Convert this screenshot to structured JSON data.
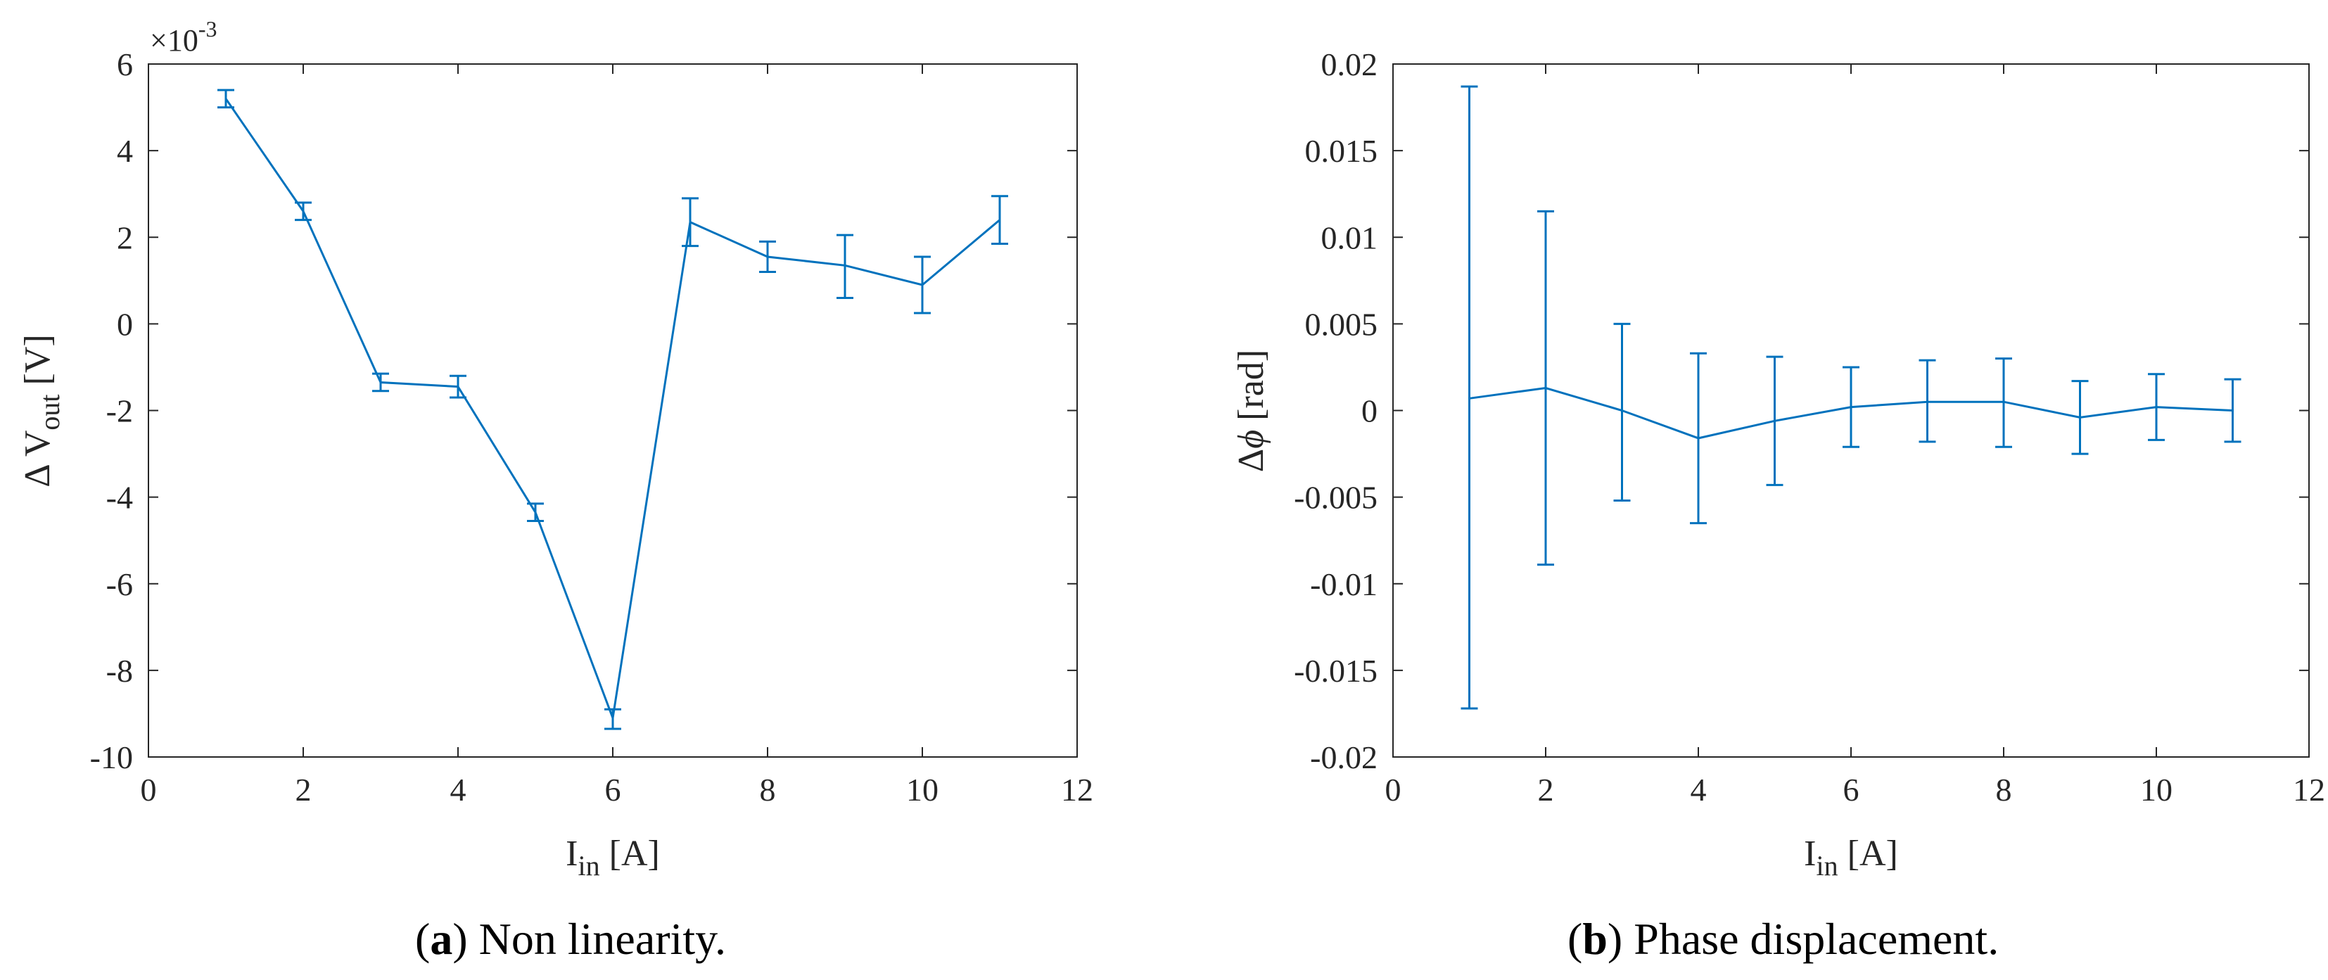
{
  "chart_data": [
    {
      "type": "line",
      "panel": "a",
      "caption_letter": "a",
      "caption_text": "Non linearity.",
      "xlabel_main": "I",
      "xlabel_sub": "in",
      "xlabel_unit": " [A]",
      "ylabel_prefix": "Δ V",
      "ylabel_sub": "out",
      "ylabel_unit": " [V]",
      "y_multiplier_base": "×10",
      "y_multiplier_exp": "-3",
      "xlim": [
        0,
        12
      ],
      "ylim": [
        -10,
        6
      ],
      "xticks": [
        0,
        2,
        4,
        6,
        8,
        10,
        12
      ],
      "yticks": [
        6,
        4,
        2,
        0,
        -2,
        -4,
        -6,
        -8,
        -10
      ],
      "series": [
        {
          "name": "ΔVout",
          "color": "#0072BD",
          "x": [
            1,
            2,
            3,
            4,
            5,
            6,
            7,
            8,
            9,
            10,
            11
          ],
          "y": [
            5.2,
            2.6,
            -1.35,
            -1.45,
            -4.35,
            -9.1,
            2.35,
            1.55,
            1.35,
            0.9,
            2.4
          ],
          "err_low": [
            5.0,
            2.4,
            -1.55,
            -1.7,
            -4.55,
            -9.35,
            1.8,
            1.2,
            0.6,
            0.25,
            1.85
          ],
          "err_high": [
            5.4,
            2.8,
            -1.15,
            -1.2,
            -4.15,
            -8.9,
            2.9,
            1.9,
            2.05,
            1.55,
            2.95
          ]
        }
      ]
    },
    {
      "type": "line",
      "panel": "b",
      "caption_letter": "b",
      "caption_text": "Phase displacement.",
      "xlabel_main": "I",
      "xlabel_sub": "in",
      "xlabel_unit": " [A]",
      "ylabel_prefix": "Δ",
      "ylabel_symbol": "ϕ",
      "ylabel_unit": " [rad]",
      "xlim": [
        0,
        12
      ],
      "ylim": [
        -0.02,
        0.02
      ],
      "xticks": [
        0,
        2,
        4,
        6,
        8,
        10,
        12
      ],
      "yticks": [
        0.02,
        0.015,
        0.01,
        0.005,
        0,
        -0.005,
        -0.01,
        -0.015,
        -0.02
      ],
      "ytick_labels": [
        "0.02",
        "0.015",
        "0.01",
        "0.005",
        "0",
        "-0.005",
        "-0.01",
        "-0.015",
        "-0.02"
      ],
      "series": [
        {
          "name": "Δphi",
          "color": "#0072BD",
          "x": [
            1,
            2,
            3,
            4,
            5,
            6,
            7,
            8,
            9,
            10,
            11
          ],
          "y": [
            0.0007,
            0.0013,
            0.0,
            -0.0016,
            -0.0006,
            0.0002,
            0.0005,
            0.0005,
            -0.0004,
            0.0002,
            0.0
          ],
          "err_low": [
            -0.0172,
            -0.0089,
            -0.0052,
            -0.0065,
            -0.0043,
            -0.0021,
            -0.0018,
            -0.0021,
            -0.0025,
            -0.0017,
            -0.0018
          ],
          "err_high": [
            0.0187,
            0.0115,
            0.005,
            0.0033,
            0.0031,
            0.0025,
            0.0029,
            0.003,
            0.0017,
            0.0021,
            0.0018
          ]
        }
      ]
    }
  ]
}
